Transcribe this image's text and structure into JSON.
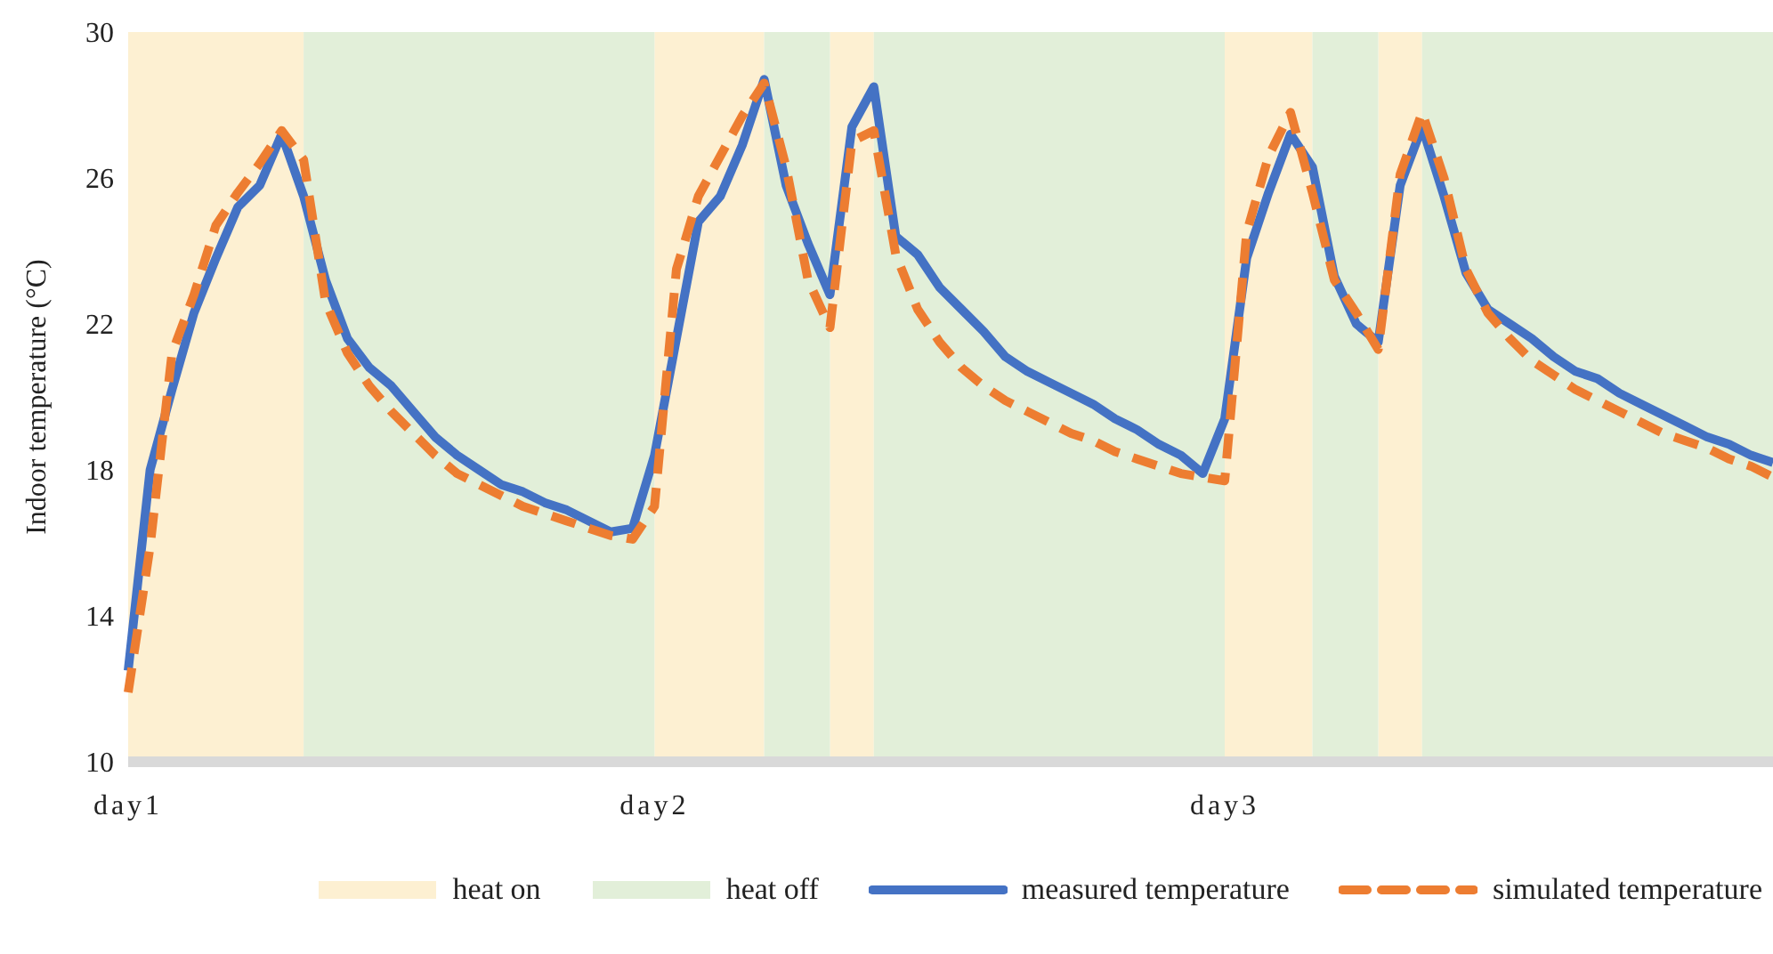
{
  "chart_data": {
    "type": "line",
    "ylabel": "Indoor temperature (°C)",
    "categories": [
      "day1",
      null,
      null,
      null,
      null,
      null,
      null,
      null,
      null,
      null,
      null,
      null,
      null,
      null,
      null,
      null,
      null,
      null,
      null,
      null,
      null,
      null,
      null,
      null,
      "day2",
      null,
      null,
      null,
      null,
      null,
      null,
      null,
      null,
      null,
      null,
      null,
      null,
      null,
      null,
      null,
      null,
      null,
      null,
      null,
      null,
      null,
      null,
      null,
      null,
      null,
      "day3",
      null,
      null,
      null,
      null,
      null,
      null,
      null,
      null,
      null,
      null,
      null,
      null,
      null,
      null,
      null,
      null,
      null,
      null,
      null,
      null,
      null,
      null,
      null,
      null,
      null
    ],
    "ylim": [
      10,
      30
    ],
    "yticks": [
      10,
      14,
      18,
      22,
      26,
      30
    ],
    "grid": false,
    "legend": "bottom",
    "marker": "none",
    "series": [
      {
        "name": "heat on",
        "type": "area",
        "color": "#fdf0d2",
        "values": [
          30,
          30,
          30,
          30,
          30,
          30,
          30,
          30,
          30,
          null,
          null,
          null,
          null,
          null,
          null,
          null,
          null,
          null,
          null,
          null,
          null,
          null,
          null,
          null,
          30,
          30,
          30,
          30,
          30,
          30,
          null,
          null,
          30,
          30,
          30,
          null,
          null,
          null,
          null,
          null,
          null,
          null,
          null,
          null,
          null,
          null,
          null,
          null,
          null,
          null,
          30,
          30,
          30,
          30,
          30,
          null,
          null,
          30,
          30,
          30,
          null,
          null,
          null,
          null,
          null,
          null,
          null,
          null,
          null,
          null,
          null,
          null,
          null,
          null,
          null,
          null
        ]
      },
      {
        "name": "heat off",
        "type": "area",
        "color": "#e2efd9",
        "values": [
          null,
          null,
          null,
          null,
          null,
          null,
          null,
          null,
          30,
          30,
          30,
          30,
          30,
          30,
          30,
          30,
          30,
          30,
          30,
          30,
          30,
          30,
          30,
          30,
          30,
          null,
          null,
          null,
          null,
          30,
          30,
          30,
          30,
          null,
          30,
          30,
          30,
          30,
          30,
          30,
          30,
          30,
          30,
          30,
          30,
          30,
          30,
          30,
          30,
          30,
          30,
          null,
          null,
          null,
          30,
          30,
          30,
          30,
          null,
          30,
          30,
          30,
          30,
          30,
          30,
          30,
          30,
          30,
          30,
          30,
          30,
          30,
          30,
          30,
          30,
          30
        ]
      },
      {
        "name": "measured temperature",
        "color": "#4472c4",
        "line_style": "solid",
        "values": [
          12.5,
          18.0,
          20.2,
          22.3,
          23.8,
          25.2,
          25.8,
          27.2,
          25.5,
          23.2,
          21.6,
          20.8,
          20.3,
          19.6,
          18.9,
          18.4,
          18.0,
          17.6,
          17.4,
          17.1,
          16.9,
          16.6,
          16.3,
          16.4,
          18.4,
          21.6,
          24.8,
          25.5,
          26.9,
          28.7,
          25.8,
          24.2,
          22.8,
          27.4,
          28.5,
          24.4,
          23.9,
          23.0,
          22.4,
          21.8,
          21.1,
          20.7,
          20.4,
          20.1,
          19.8,
          19.4,
          19.1,
          18.7,
          18.4,
          17.9,
          19.4,
          23.8,
          25.6,
          27.2,
          26.3,
          23.3,
          22.0,
          21.5,
          25.8,
          27.4,
          25.5,
          23.4,
          22.4,
          22.0,
          21.6,
          21.1,
          20.7,
          20.5,
          20.1,
          19.8,
          19.5,
          19.2,
          18.9,
          18.7,
          18.4,
          18.2
        ]
      },
      {
        "name": "simulated temperature",
        "color": "#ed7d31",
        "line_style": "dashed",
        "values": [
          11.9,
          15.9,
          21.2,
          22.8,
          24.7,
          25.6,
          26.4,
          27.3,
          26.5,
          22.6,
          21.2,
          20.3,
          19.6,
          19.0,
          18.4,
          17.9,
          17.6,
          17.3,
          17.0,
          16.8,
          16.6,
          16.4,
          16.2,
          16.1,
          17.0,
          23.5,
          25.5,
          26.6,
          27.7,
          28.6,
          26.3,
          23.2,
          21.9,
          27.0,
          27.3,
          23.9,
          22.4,
          21.5,
          20.8,
          20.3,
          19.9,
          19.6,
          19.3,
          19.0,
          18.8,
          18.5,
          18.3,
          18.1,
          17.9,
          17.8,
          17.7,
          24.5,
          26.6,
          27.8,
          25.6,
          23.2,
          22.3,
          21.3,
          26.1,
          27.8,
          26.0,
          23.5,
          22.3,
          21.6,
          21.0,
          20.6,
          20.2,
          19.9,
          19.6,
          19.3,
          19.0,
          18.8,
          18.6,
          18.3,
          18.1,
          17.8
        ]
      }
    ]
  }
}
